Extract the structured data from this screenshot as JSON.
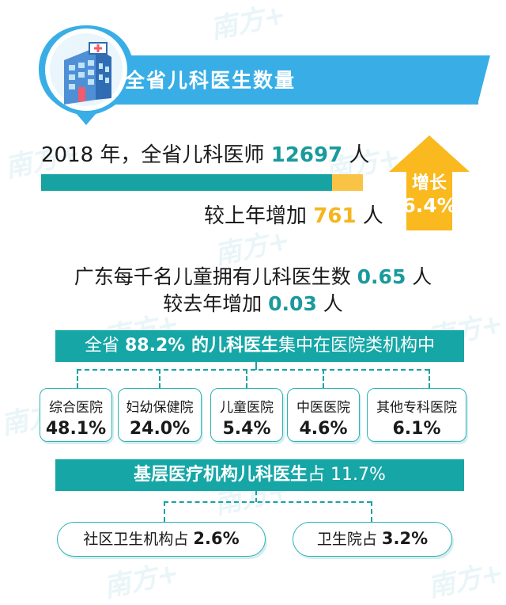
{
  "header": {
    "title": "全省儿科医生数量"
  },
  "doctors": {
    "year_text": "2018 年，全省儿科医师 ",
    "count": "12697",
    "unit": " 人",
    "increase_prefix": "较上年增加 ",
    "increase_value": "761",
    "increase_unit": " 人",
    "bar_fraction_base": 0.904,
    "bar_fraction_increase": 0.096
  },
  "growth": {
    "label": "增长",
    "value": "6.4%"
  },
  "per_thousand": {
    "line1_text": "广东每千名儿童拥有儿科医生数 ",
    "line1_value": "0.65",
    "line1_unit": " 人",
    "line2_text": "较去年增加 ",
    "line2_value": "0.03",
    "line2_unit": " 人"
  },
  "hospital_section": {
    "banner_prefix": "全省 ",
    "banner_bold": "88.2% 的儿科医生",
    "banner_suffix": "集中在医院类机构中",
    "cards": [
      {
        "label": "综合医院",
        "value": "48.1%"
      },
      {
        "label": "妇幼保健院",
        "value": "24.0%"
      },
      {
        "label": "儿童医院",
        "value": "5.4%"
      },
      {
        "label": "中医医院",
        "value": "4.6%"
      },
      {
        "label": "其他专科医院",
        "value": "6.1%"
      }
    ]
  },
  "grassroots_section": {
    "banner_bold": "基层医疗机构儿科医生",
    "banner_suffix": "占 11.7%",
    "items": [
      {
        "label": "社区卫生机构占 ",
        "value": "2.6%"
      },
      {
        "label": "卫生院占 ",
        "value": "3.2%"
      }
    ]
  },
  "colors": {
    "teal": "#17a3a2",
    "gold": "#f5b51f",
    "blue": "#39aee6"
  }
}
